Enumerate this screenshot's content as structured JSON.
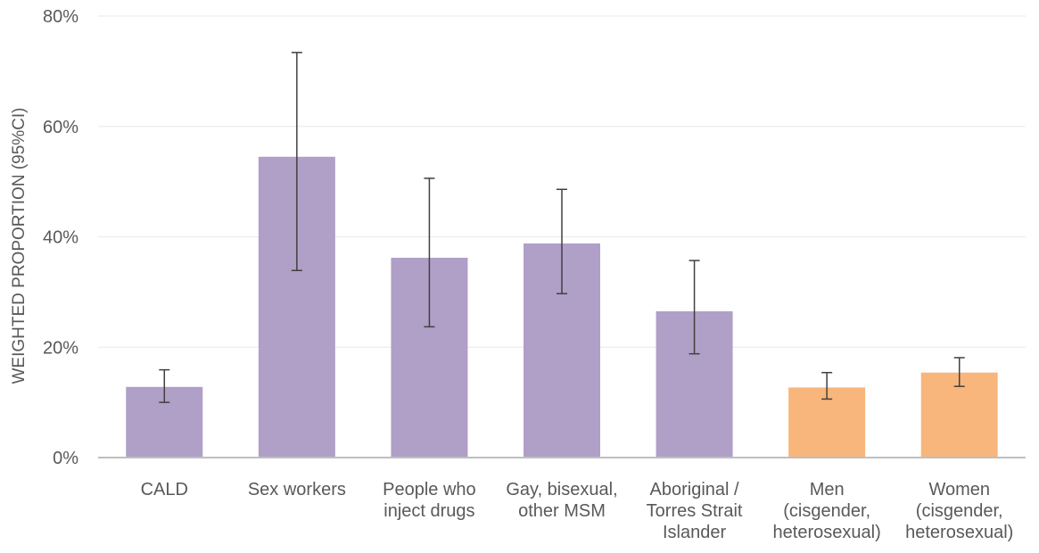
{
  "chart_data": {
    "type": "bar",
    "title": "",
    "xlabel": "",
    "ylabel": "WEIGHTED PROPORTION (95%CI)",
    "ylim": [
      0,
      80
    ],
    "yticks": [
      0,
      20,
      40,
      60,
      80
    ],
    "ytick_labels": [
      "0%",
      "20%",
      "40%",
      "60%",
      "80%"
    ],
    "grid": true,
    "legend": "none",
    "categories": [
      [
        "CALD"
      ],
      [
        "Sex workers"
      ],
      [
        "People who",
        "inject drugs"
      ],
      [
        "Gay, bisexual,",
        "other MSM"
      ],
      [
        "Aboriginal /",
        "Torres Strait",
        "Islander"
      ],
      [
        "Men",
        "(cisgender,",
        "heterosexual)"
      ],
      [
        "Women",
        "(cisgender,",
        "heterosexual)"
      ]
    ],
    "values": [
      12.8,
      54.5,
      36.2,
      38.8,
      26.5,
      12.7,
      15.4
    ],
    "ci_lower": [
      10.0,
      33.9,
      23.7,
      29.7,
      18.8,
      10.6,
      12.9
    ],
    "ci_upper": [
      15.9,
      73.4,
      50.6,
      48.6,
      35.7,
      15.4,
      18.1
    ],
    "bar_colors": [
      "#b09fc7",
      "#b09fc7",
      "#b09fc7",
      "#b09fc7",
      "#b09fc7",
      "#f8b67c",
      "#f8b67c"
    ]
  }
}
